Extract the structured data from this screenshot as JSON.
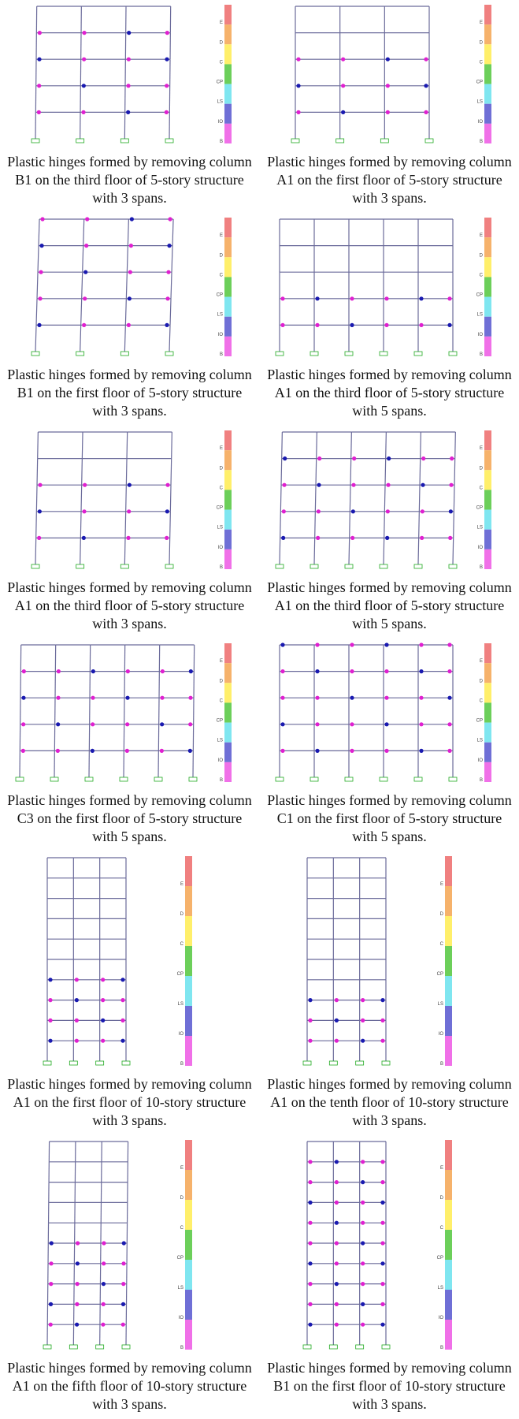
{
  "legend": {
    "levels": [
      "E",
      "D",
      "C",
      "CP",
      "LS",
      "IO",
      "B"
    ]
  },
  "panels": [
    {
      "caption": "Plastic hinges formed by removing column B1 on the third floor of 5-story structure with 3 spans."
    },
    {
      "caption": "Plastic hinges formed by removing column A1 on the first floor of 5-story structure with 3 spans."
    },
    {
      "caption": "Plastic hinges formed by removing column B1 on the first floor of 5-story structure with 3 spans."
    },
    {
      "caption": "Plastic hinges formed by removing column A1 on the third floor of 5-story structure with 5 spans."
    },
    {
      "caption": "Plastic hinges formed by removing column A1 on the third floor of 5-story structure with 3 spans."
    },
    {
      "caption": "Plastic hinges formed by removing column A1 on the third floor of 5-story structure with 5 spans."
    },
    {
      "caption": "Plastic hinges formed by removing column C3 on the first floor of 5-story structure with 5 spans."
    },
    {
      "caption": "Plastic hinges formed by removing column C1 on the first floor of 5-story structure with 5 spans."
    },
    {
      "caption": "Plastic hinges formed by removing column A1 on the first floor of 10-story structure with 3 spans."
    },
    {
      "caption": "Plastic hinges formed by removing column A1 on the tenth floor of 10-story structure with 3 spans."
    },
    {
      "caption": "Plastic hinges formed by removing column A1 on the fifth floor of 10-story structure with 3 spans."
    },
    {
      "caption": "Plastic hinges formed by removing column B1 on the first floor of 10-story structure with 3 spans."
    }
  ]
}
